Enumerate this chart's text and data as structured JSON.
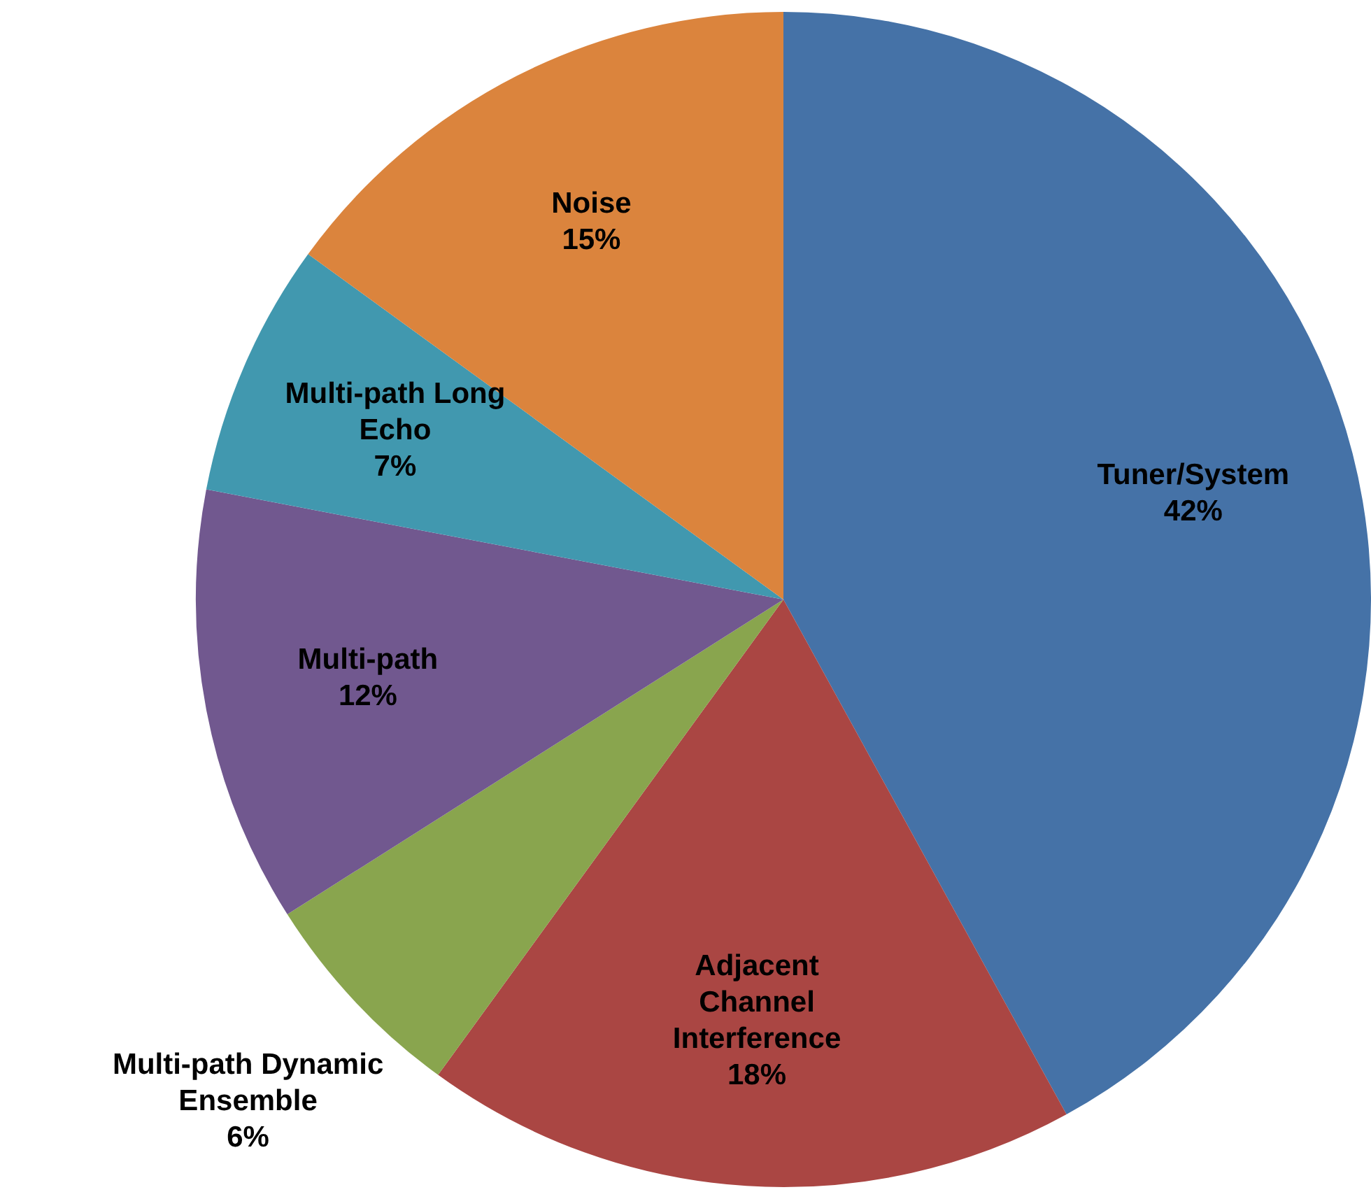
{
  "chart_data": {
    "type": "pie",
    "categories": [
      "Tuner/System",
      "Adjacent Channel Interference",
      "Multi-path Dynamic Ensemble",
      "Multi-path",
      "Multi-path Long Echo",
      "Noise"
    ],
    "values": [
      42,
      18,
      6,
      12,
      7,
      15
    ],
    "value_labels": [
      "42%",
      "18%",
      "6%",
      "12%",
      "7%",
      "15%"
    ],
    "colors": [
      "#4572a7",
      "#aa4643",
      "#89a54e",
      "#71588f",
      "#4198af",
      "#db843d"
    ],
    "legend": false
  }
}
